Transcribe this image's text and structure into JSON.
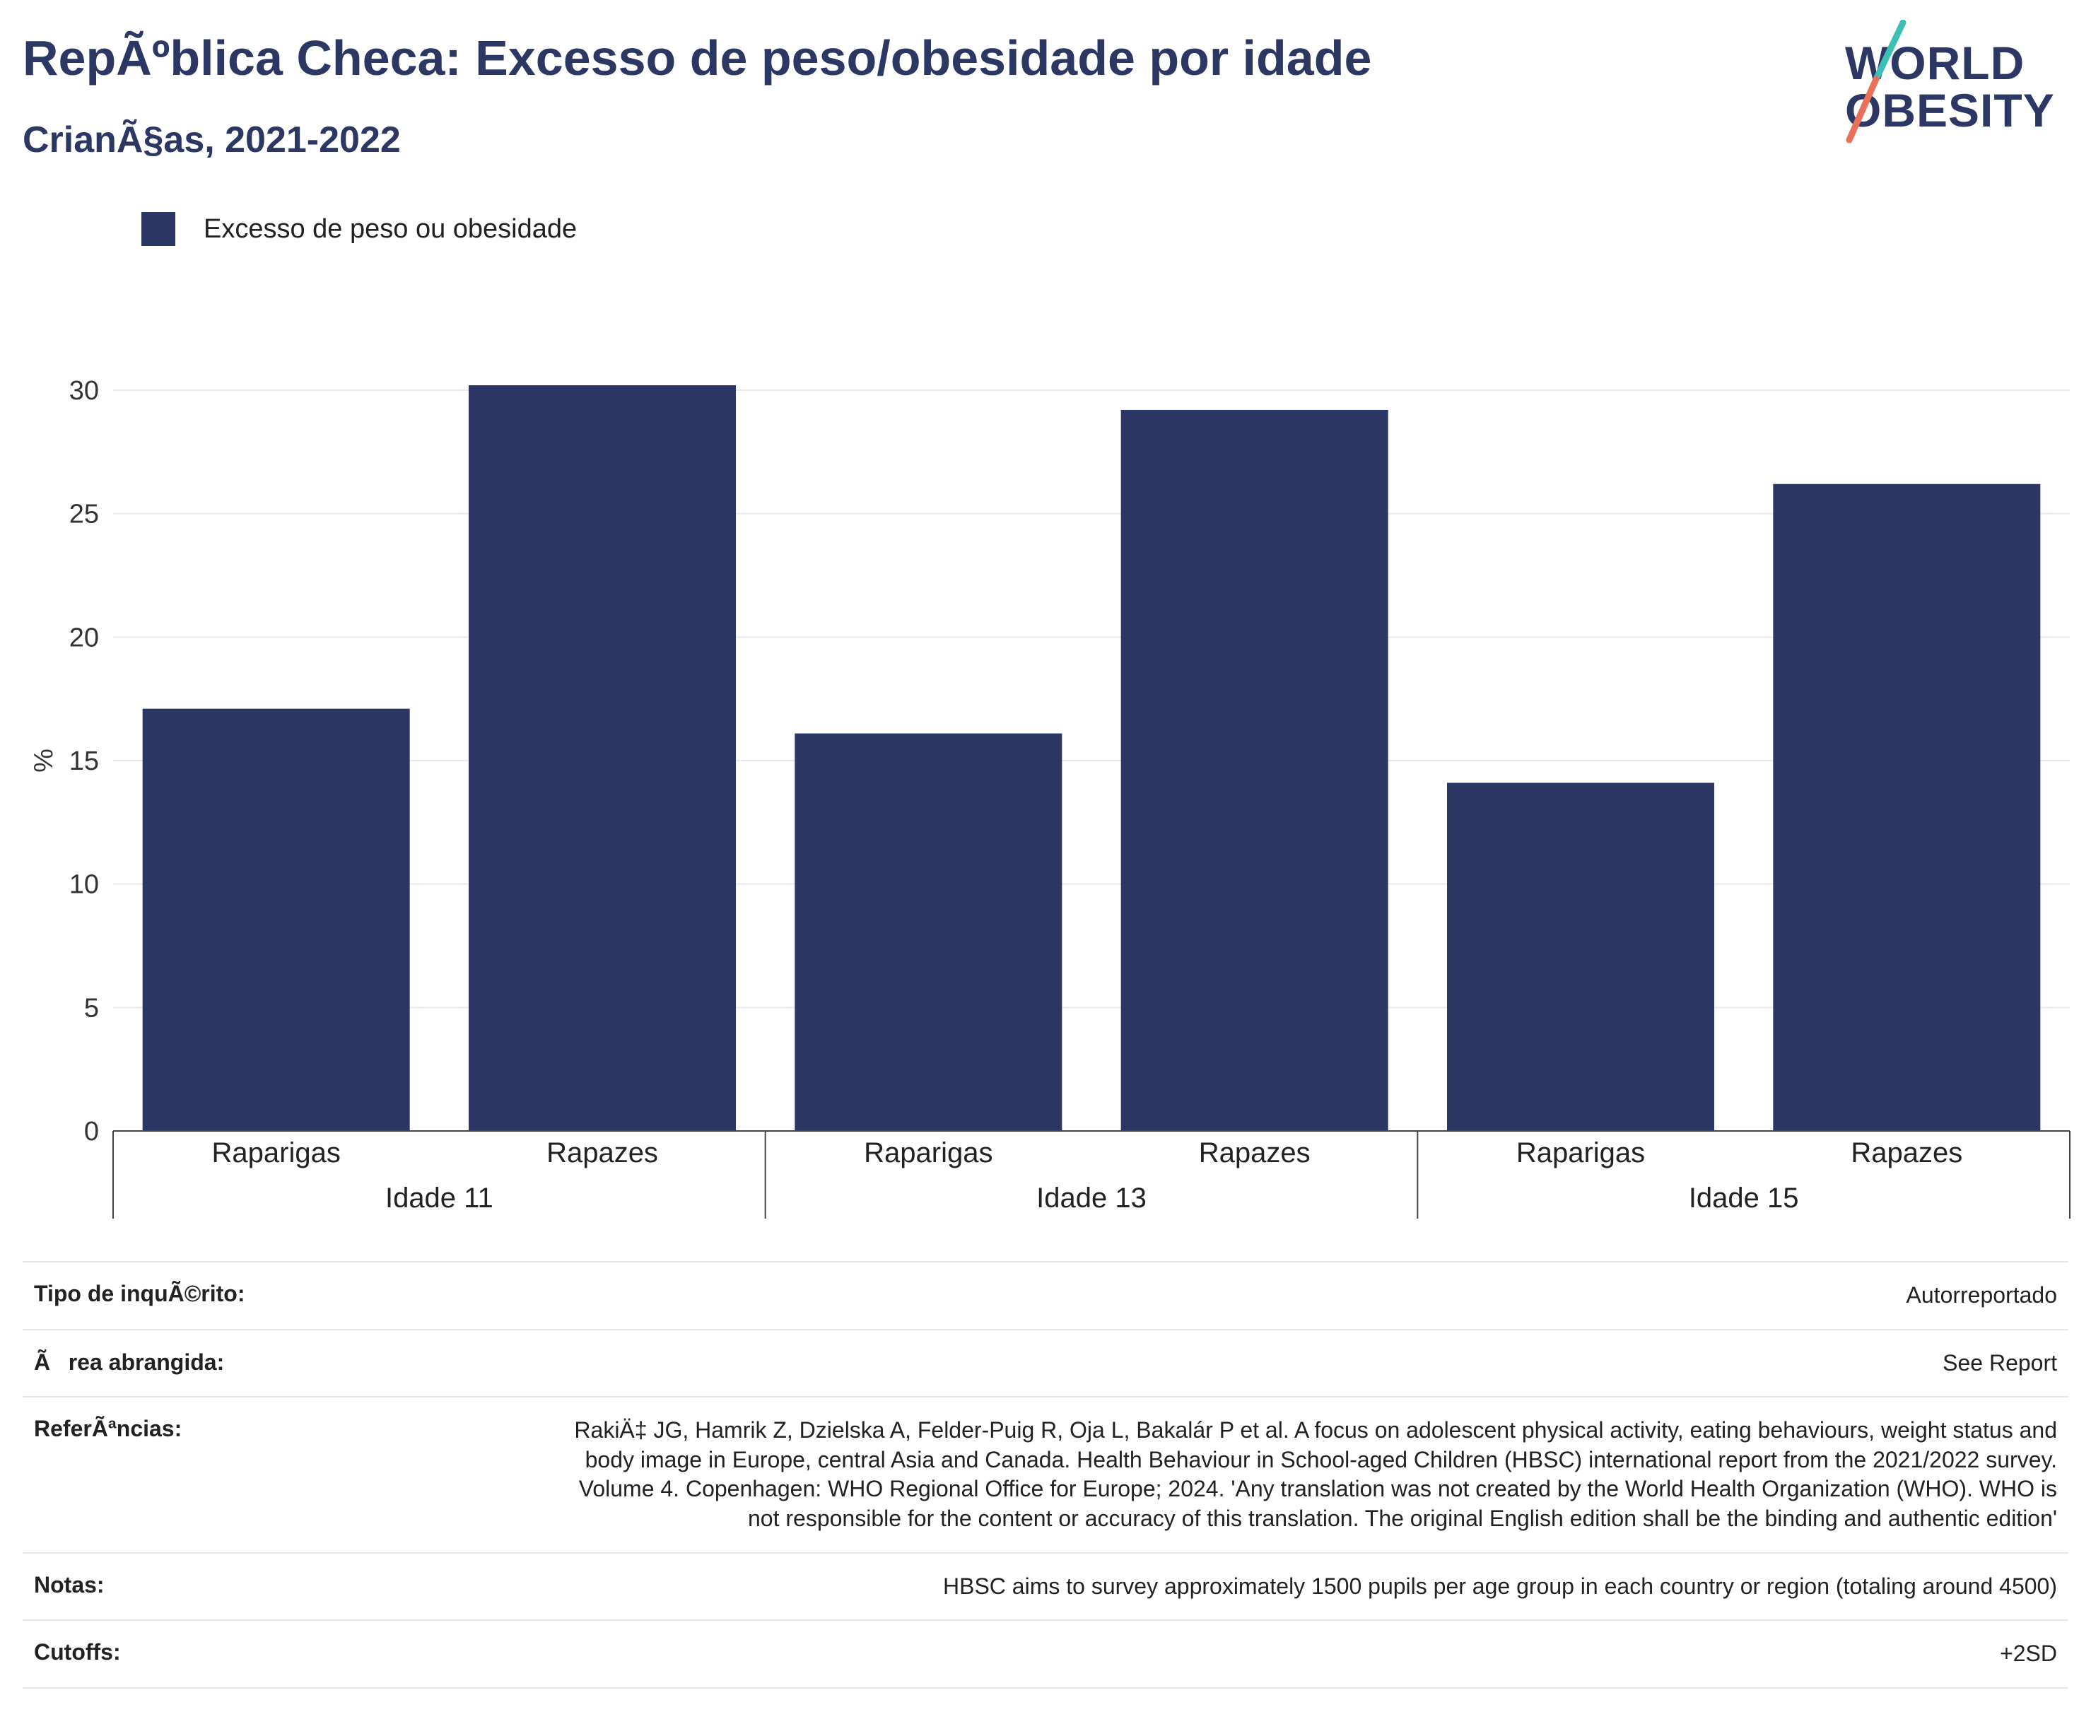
{
  "header": {
    "title": "RepÃºblica Checa: Excesso de peso/obesidade por idade",
    "subtitle": "CrianÃ§as, 2021-2022"
  },
  "logo": {
    "line1": "WORLD",
    "line2": "OBESITY",
    "colors": {
      "text": "#2c3863",
      "slash_top": "#3dbfb5",
      "slash_bottom": "#e8715a"
    }
  },
  "legend": {
    "label": "Excesso de peso ou obesidade",
    "color": "#2b3664"
  },
  "chart_data": {
    "type": "bar",
    "ylabel": "%",
    "ylim": [
      0,
      30
    ],
    "yticks": [
      0,
      5,
      10,
      15,
      20,
      25,
      30
    ],
    "grid": true,
    "legend_position": "top-left",
    "bar_color": "#2b3664",
    "groups": [
      {
        "label": "Idade 11",
        "bars": [
          {
            "category": "Raparigas",
            "value": 17.1
          },
          {
            "category": "Rapazes",
            "value": 30.2
          }
        ]
      },
      {
        "label": "Idade 13",
        "bars": [
          {
            "category": "Raparigas",
            "value": 16.1
          },
          {
            "category": "Rapazes",
            "value": 29.2
          }
        ]
      },
      {
        "label": "Idade 15",
        "bars": [
          {
            "category": "Raparigas",
            "value": 14.1
          },
          {
            "category": "Rapazes",
            "value": 26.2
          }
        ]
      }
    ],
    "series": [
      {
        "name": "Excesso de peso ou obesidade",
        "values": [
          17.1,
          30.2,
          16.1,
          29.2,
          14.1,
          26.2
        ]
      }
    ]
  },
  "info": [
    {
      "key": "Tipo de inquÃ©rito:",
      "value": "Autorreportado"
    },
    {
      "key": "Ãrea abrangida:",
      "value": "See Report"
    },
    {
      "key": "ReferÃªncias:",
      "value": "RakiÄ‡ JG, Hamrik Z, Dzielska A, Felder-Puig R, Oja L, Bakalár P et al. A focus on adolescent physical activity, eating behaviours, weight status and body image in Europe, central Asia and Canada. Health Behaviour in School-aged Children (HBSC) international report from the 2021/2022 survey. Volume 4. Copenhagen: WHO Regional Office for Europe; 2024. 'Any translation was not created by the World Health Organization (WHO). WHO is not responsible for the content or accuracy of this translation. The original English edition shall be the binding and authentic edition'"
    },
    {
      "key": "Notas:",
      "value": "HBSC aims to survey approximately 1500 pupils per age group in each country or region (totaling around 4500)"
    },
    {
      "key": "Cutoffs:",
      "value": "+2SD"
    }
  ]
}
